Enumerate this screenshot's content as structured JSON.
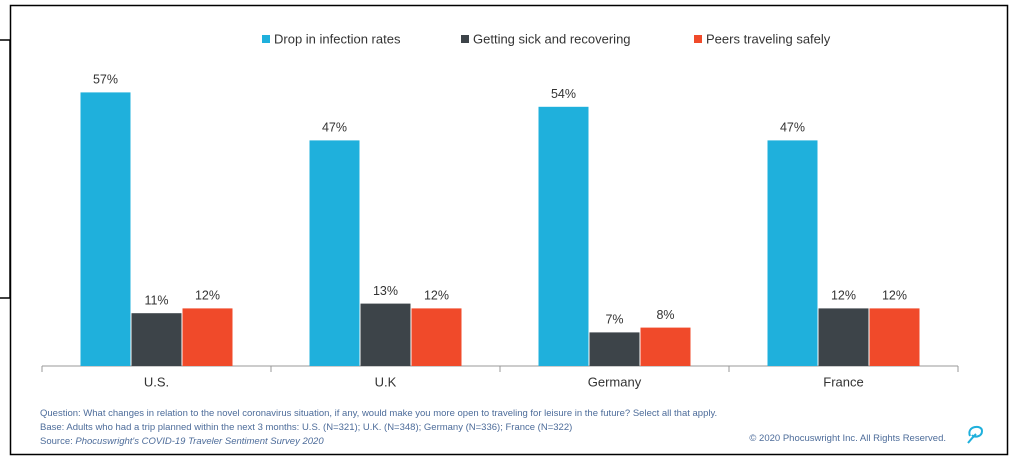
{
  "chart_data": {
    "type": "bar",
    "categories": [
      "U.S.",
      "U.K",
      "Germany",
      "France"
    ],
    "series": [
      {
        "name": "Drop in infection rates",
        "color": "#1fb0dc",
        "values": [
          57,
          47,
          54,
          47
        ],
        "value_labels": [
          "57%",
          "47%",
          "54%",
          "47%"
        ]
      },
      {
        "name": "Getting sick and recovering",
        "color": "#3d4449",
        "values": [
          11,
          13,
          7,
          12
        ],
        "value_labels": [
          "11%",
          "13%",
          "7%",
          "12%"
        ]
      },
      {
        "name": "Peers traveling safely",
        "color": "#f04a2a",
        "values": [
          12,
          12,
          8,
          12
        ],
        "value_labels": [
          "12%",
          "12%",
          "8%",
          "12%"
        ]
      }
    ],
    "legend": "top",
    "notes": {
      "question": "Question: What changes in relation to the novel coronavirus situation, if any, would make you more open to traveling for leisure in the future? Select all that apply.",
      "base": "Base: Adults who had a trip planned within the next 3 months: U.S. (N=321); U.K. (N=348); Germany (N=336); France (N=322)",
      "source_label": "Source:",
      "source": "Phocuswright's COVID-19 Traveler Sentiment Survey 2020",
      "copyright": "© 2020 Phocuswright Inc. All Rights Reserved."
    }
  }
}
